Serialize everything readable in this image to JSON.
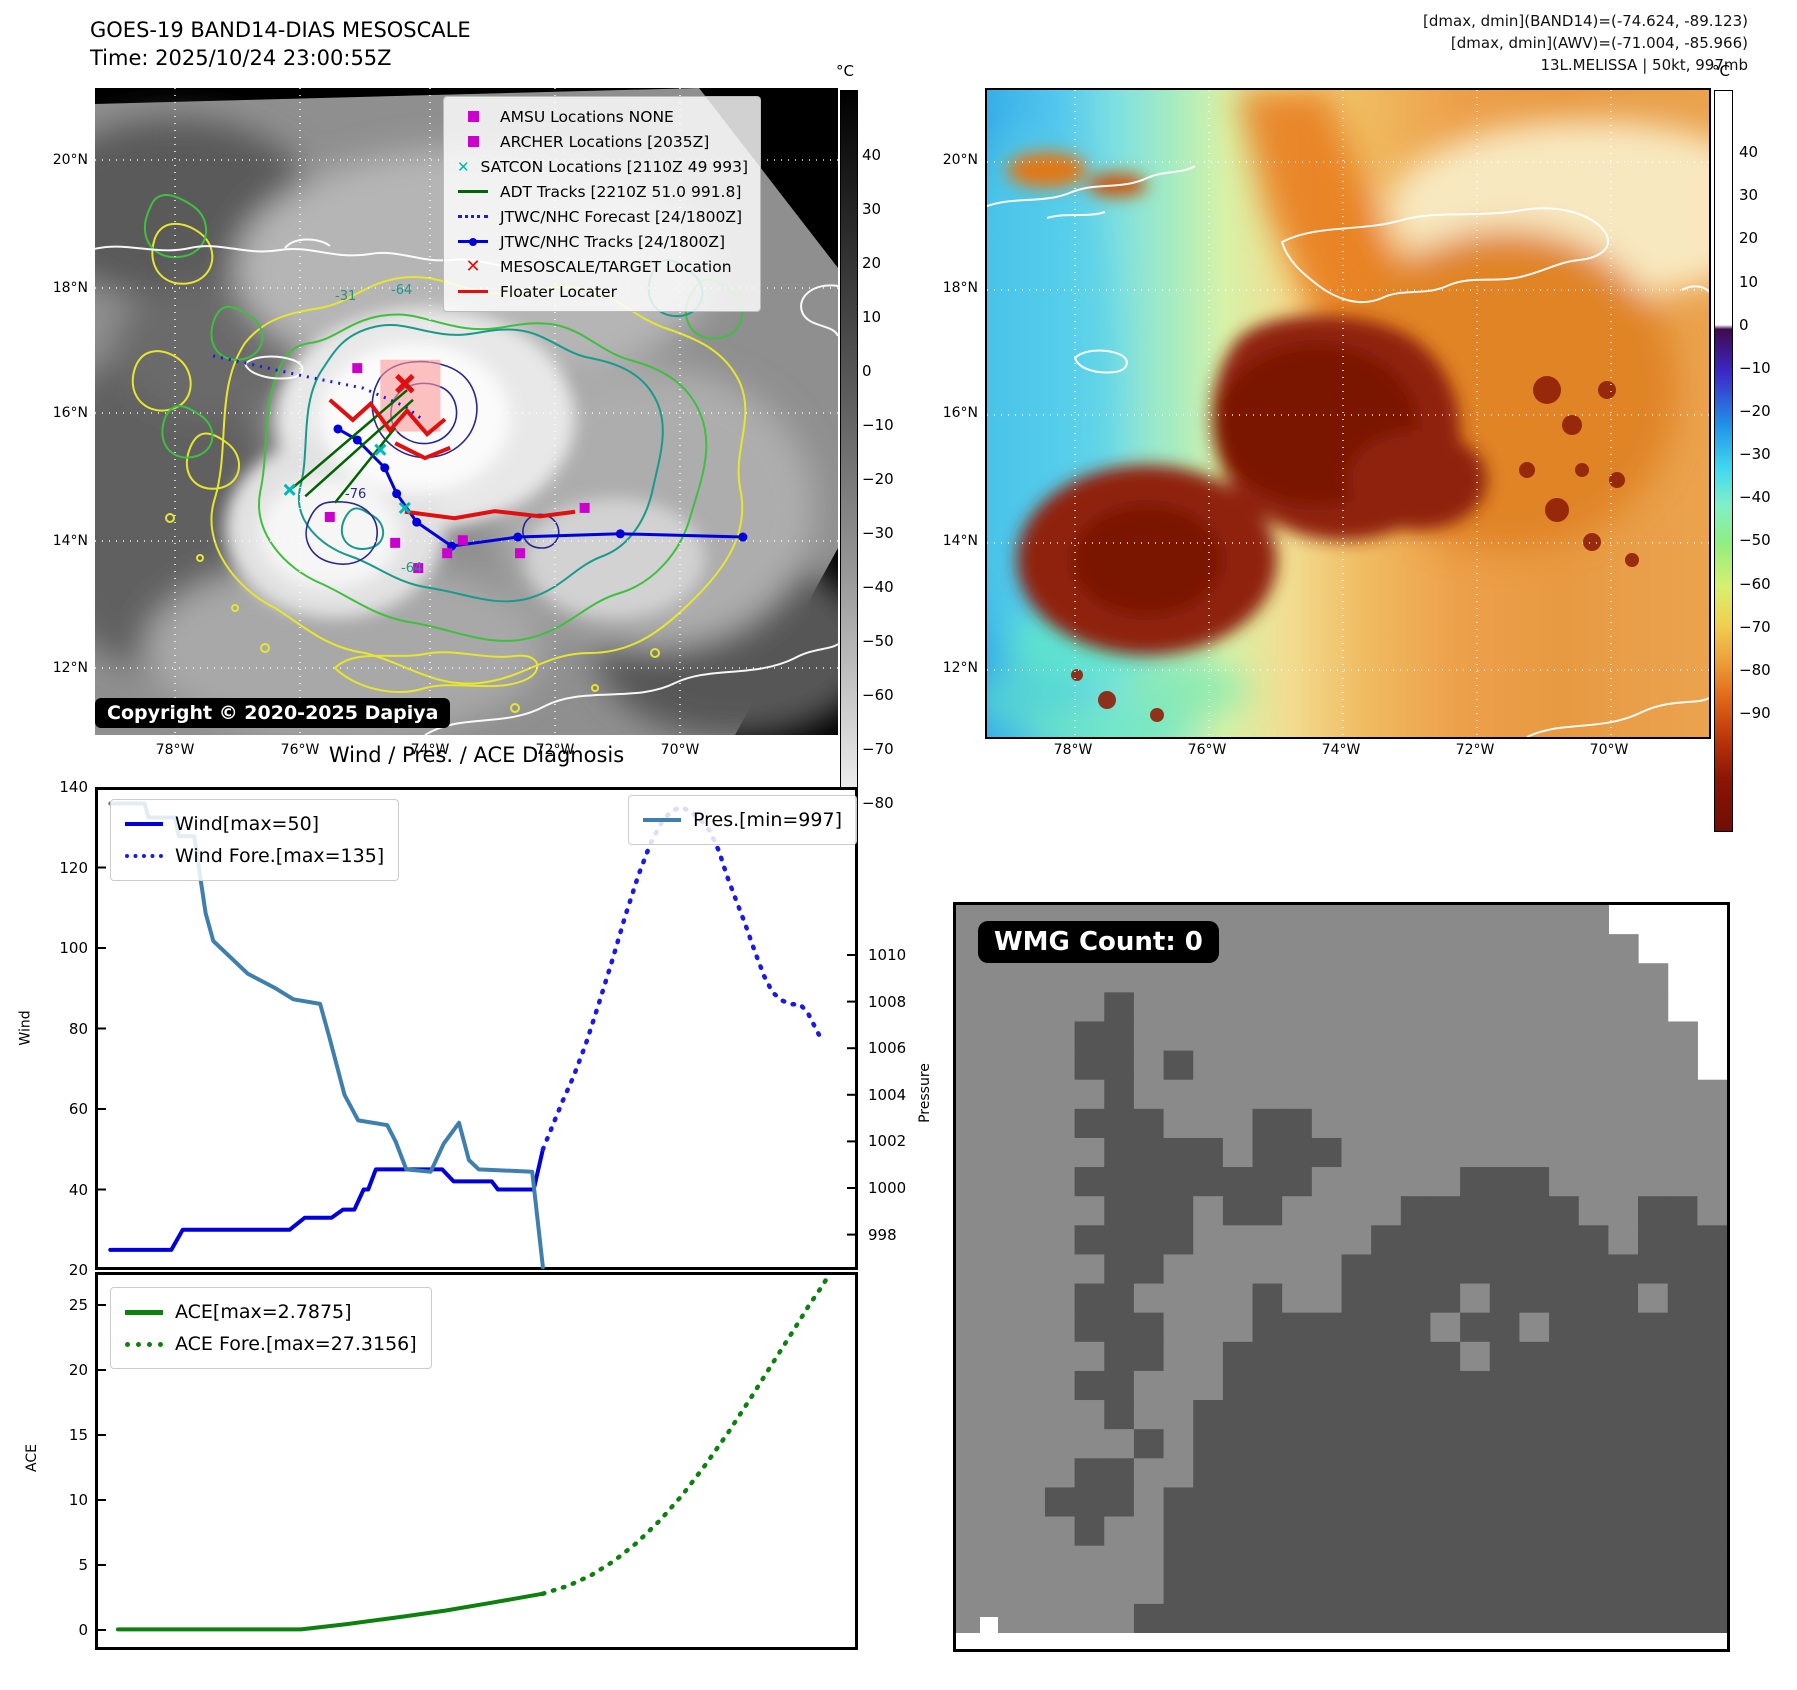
{
  "band14": {
    "title": "GOES-19 BAND14-DIAS MESOSCALE",
    "time_line": "Time: 2025/10/24 23:00:55Z",
    "copyright": "Copyright © 2020-2025 Dapiya",
    "legend": [
      {
        "marker": "square",
        "color": "#cc00cc",
        "label": "AMSU Locations NONE"
      },
      {
        "marker": "square",
        "color": "#cc00cc",
        "label": "ARCHER Locations [2035Z]"
      },
      {
        "marker": "x",
        "color": "#00b8b8",
        "label": "SATCON Locations [2110Z 49 993]"
      },
      {
        "marker": "line",
        "color": "#006400",
        "label": "ADT Tracks [2210Z 51.0 991.8]"
      },
      {
        "marker": "dotted",
        "color": "#1a1ae6",
        "label": "JTWC/NHC Forecast [24/1800Z]"
      },
      {
        "marker": "linedot",
        "color": "#0000dd",
        "label": "JTWC/NHC Tracks [24/1800Z]"
      },
      {
        "marker": "X",
        "color": "#e01010",
        "label": "MESOSCALE/TARGET Location"
      },
      {
        "marker": "line",
        "color": "#e01010",
        "label": "Floater Locater"
      }
    ],
    "lat_labels": [
      "20°N",
      "18°N",
      "16°N",
      "14°N",
      "12°N"
    ],
    "lon_labels": [
      "78°W",
      "76°W",
      "74°W",
      "72°W",
      "70°W"
    ],
    "colorbar": {
      "unit": "°C",
      "ticks": [
        40,
        30,
        20,
        10,
        0,
        -10,
        -20,
        -30,
        -40,
        -50,
        -60,
        -70,
        -80
      ]
    },
    "contour_labels": [
      "-31",
      "-64",
      "-76",
      "-64"
    ],
    "markers": {
      "amsu_archer_squares": [
        [
          0.353,
          0.433
        ],
        [
          0.316,
          0.663
        ],
        [
          0.404,
          0.703
        ],
        [
          0.474,
          0.719
        ],
        [
          0.572,
          0.719
        ],
        [
          0.659,
          0.649
        ],
        [
          0.495,
          0.699
        ],
        [
          0.435,
          0.742
        ]
      ],
      "satcon_crosses": [
        [
          0.262,
          0.621
        ],
        [
          0.384,
          0.559
        ],
        [
          0.417,
          0.649
        ]
      ],
      "target_x": [
        0.417,
        0.457
      ],
      "target_box": [
        0.384,
        0.42,
        0.081,
        0.111
      ],
      "forecast_track": [
        [
          0.159,
          0.414
        ],
        [
          0.276,
          0.444
        ],
        [
          0.361,
          0.464
        ],
        [
          0.417,
          0.492
        ],
        [
          0.444,
          0.515
        ]
      ],
      "jtwc_track": [
        [
          0.872,
          0.694
        ],
        [
          0.707,
          0.689
        ],
        [
          0.569,
          0.694
        ],
        [
          0.48,
          0.708
        ],
        [
          0.433,
          0.671
        ],
        [
          0.406,
          0.627
        ],
        [
          0.39,
          0.587
        ],
        [
          0.353,
          0.544
        ],
        [
          0.327,
          0.527
        ]
      ],
      "adt_tracks": [
        [
          [
            0.266,
            0.618
          ],
          [
            0.42,
            0.467
          ]
        ],
        [
          [
            0.283,
            0.631
          ],
          [
            0.428,
            0.482
          ]
        ],
        [
          [
            0.323,
            0.641
          ],
          [
            0.404,
            0.525
          ]
        ]
      ],
      "floater_tracks": [
        [
          [
            0.316,
            0.482
          ],
          [
            0.347,
            0.513
          ],
          [
            0.371,
            0.488
          ],
          [
            0.397,
            0.529
          ],
          [
            0.42,
            0.499
          ],
          [
            0.447,
            0.535
          ],
          [
            0.471,
            0.512
          ]
        ],
        [
          [
            0.417,
            0.655
          ],
          [
            0.484,
            0.665
          ],
          [
            0.538,
            0.654
          ],
          [
            0.599,
            0.662
          ],
          [
            0.646,
            0.655
          ]
        ],
        [
          [
            0.404,
            0.549
          ],
          [
            0.444,
            0.572
          ],
          [
            0.478,
            0.556
          ]
        ]
      ]
    }
  },
  "awv": {
    "header_lines": [
      "[dmax, dmin](BAND14)=(-74.624, -89.123)",
      "[dmax, dmin](AWV)=(-71.004, -85.966)",
      "13L.MELISSA | 50kt, 997mb"
    ],
    "lat_labels": [
      "20°N",
      "18°N",
      "16°N",
      "14°N",
      "12°N"
    ],
    "lon_labels": [
      "78°W",
      "76°W",
      "74°W",
      "72°W",
      "70°W"
    ],
    "colorbar": {
      "unit": "°C",
      "ticks": [
        40,
        30,
        20,
        10,
        0,
        -10,
        -20,
        -30,
        -40,
        -50,
        -60,
        -70,
        -80,
        -90
      ]
    }
  },
  "charts": {
    "title": "Wind / Pres. / ACE Diagnosis",
    "wind_legend": [
      "Wind[max=50]",
      "Wind Fore.[max=135]"
    ],
    "pres_legend": "Pres.[min=997]",
    "ace_legend": [
      "ACE[max=2.7875]",
      "ACE Fore.[max=27.3156]"
    ]
  },
  "chart_data": [
    {
      "type": "line",
      "subplot": "wind-pressure",
      "title": "Wind / Pres. / ACE Diagnosis",
      "xlabel": "",
      "x_note": "relative time 0-1, no x tick labels shown",
      "ylabel_left": "Wind",
      "ylabel_right": "Pressure",
      "yticks_left": [
        20,
        40,
        60,
        80,
        100,
        120,
        140
      ],
      "yticks_right": [
        998,
        1000,
        1002,
        1004,
        1006,
        1008,
        1010
      ],
      "ylim_left": [
        20,
        140
      ],
      "ylim_right": [
        996.5,
        1017.2
      ],
      "grid": false,
      "series": [
        {
          "name": "Wind[max=50]",
          "axis": "left",
          "style": "solid",
          "color": "#0000dd",
          "points": [
            [
              0.02,
              25
            ],
            [
              0.1,
              25
            ],
            [
              0.115,
              30
            ],
            [
              0.255,
              30
            ],
            [
              0.275,
              33
            ],
            [
              0.31,
              33
            ],
            [
              0.325,
              35
            ],
            [
              0.34,
              35
            ],
            [
              0.352,
              40
            ],
            [
              0.358,
              40
            ],
            [
              0.368,
              45
            ],
            [
              0.455,
              45
            ],
            [
              0.47,
              42
            ],
            [
              0.52,
              42
            ],
            [
              0.528,
              40
            ],
            [
              0.575,
              40
            ],
            [
              0.587,
              50
            ]
          ]
        },
        {
          "name": "Wind Fore.[max=135]",
          "axis": "left",
          "style": "dotted",
          "color": "#1a1ae6",
          "points": [
            [
              0.587,
              50
            ],
            [
              0.6,
              56
            ],
            [
              0.613,
              62
            ],
            [
              0.627,
              68
            ],
            [
              0.643,
              76
            ],
            [
              0.66,
              86
            ],
            [
              0.678,
              97
            ],
            [
              0.695,
              108
            ],
            [
              0.712,
              118
            ],
            [
              0.728,
              126
            ],
            [
              0.742,
              131
            ],
            [
              0.755,
              134
            ],
            [
              0.768,
              135
            ],
            [
              0.78,
              134
            ],
            [
              0.793,
              132
            ],
            [
              0.806,
              129
            ],
            [
              0.818,
              124
            ],
            [
              0.828,
              118
            ],
            [
              0.84,
              112
            ],
            [
              0.852,
              106
            ],
            [
              0.865,
              99
            ],
            [
              0.877,
              93
            ],
            [
              0.888,
              89
            ],
            [
              0.9,
              87
            ],
            [
              0.912,
              86
            ],
            [
              0.924,
              86
            ],
            [
              0.934,
              84
            ],
            [
              0.942,
              81
            ],
            [
              0.95,
              78
            ]
          ]
        },
        {
          "name": "Pres.[min=997]",
          "axis": "right",
          "style": "solid",
          "color": "#3f7fae",
          "points": [
            [
              0.02,
              1016.5
            ],
            [
              0.065,
              1016.5
            ],
            [
              0.07,
              1015.9
            ],
            [
              0.105,
              1015.9
            ],
            [
              0.11,
              1015.1
            ],
            [
              0.13,
              1015.1
            ],
            [
              0.145,
              1011.8
            ],
            [
              0.155,
              1010.6
            ],
            [
              0.2,
              1009.2
            ],
            [
              0.235,
              1008.6
            ],
            [
              0.26,
              1008.1
            ],
            [
              0.295,
              1007.9
            ],
            [
              0.307,
              1006.5
            ],
            [
              0.327,
              1004.0
            ],
            [
              0.345,
              1002.9
            ],
            [
              0.383,
              1002.7
            ],
            [
              0.394,
              1002.0
            ],
            [
              0.408,
              1000.8
            ],
            [
              0.44,
              1000.7
            ],
            [
              0.457,
              1001.9
            ],
            [
              0.477,
              1002.8
            ],
            [
              0.49,
              1001.2
            ],
            [
              0.503,
              1000.8
            ],
            [
              0.573,
              1000.7
            ],
            [
              0.587,
              996.6
            ]
          ]
        }
      ]
    },
    {
      "type": "line",
      "subplot": "ace",
      "xlabel": "",
      "ylabel_left": "ACE",
      "yticks_left": [
        0,
        5,
        10,
        15,
        20,
        25
      ],
      "ylim_left": [
        -1.5,
        27.5
      ],
      "grid": false,
      "series": [
        {
          "name": "ACE[max=2.7875]",
          "axis": "left",
          "style": "solid",
          "color": "#0e8010",
          "points": [
            [
              0.03,
              0.05
            ],
            [
              0.27,
              0.05
            ],
            [
              0.33,
              0.45
            ],
            [
              0.4,
              1.0
            ],
            [
              0.46,
              1.5
            ],
            [
              0.52,
              2.1
            ],
            [
              0.587,
              2.79
            ]
          ]
        },
        {
          "name": "ACE Fore.[max=27.3156]",
          "axis": "left",
          "style": "dotted",
          "color": "#0e8010",
          "points": [
            [
              0.587,
              2.79
            ],
            [
              0.62,
              3.4
            ],
            [
              0.65,
              4.2
            ],
            [
              0.68,
              5.3
            ],
            [
              0.71,
              6.7
            ],
            [
              0.74,
              8.4
            ],
            [
              0.77,
              10.4
            ],
            [
              0.8,
              12.7
            ],
            [
              0.83,
              15.2
            ],
            [
              0.86,
              17.9
            ],
            [
              0.89,
              20.7
            ],
            [
              0.915,
              23.0
            ],
            [
              0.935,
              24.9
            ],
            [
              0.95,
              26.2
            ],
            [
              0.962,
              27.3
            ]
          ]
        }
      ]
    }
  ],
  "wmg": {
    "count_label": "WMG Count: 0",
    "color_light": "#8a8a8a",
    "color_dark": "#555555",
    "rows": [
      "......................WWWW",
      ".......................WWW",
      "........................WW",
      ".....D..................WW",
      "....DD...................W",
      "....DD.D.................W",
      ".....D....................",
      "....DDD...DD..............",
      ".....DDDD.DDD.............",
      "....DDDDDDDD.....DDD......",
      ".....DDD.DD....DDDDDD..DD.",
      "....DDDD......DDDDDDDD.DDD",
      ".....DD......DDDDDDDDDDDDD",
      "....DD....D..DDDD.DDDDD.DD",
      "....DDD...DDDDDD.DD.DDDDDD",
      ".....DD..DDDDDDDD.DDDDDDDD",
      "....DD...DDDDDDDDDDDDDDDDD",
      ".....D..DDDDDDDDDDDDDDDDDD",
      "......D.DDDDDDDDDDDDDDDDDD",
      "....DD..DDDDDDDDDDDDDDDDDD",
      "...DDD.DDDDDDDDDDDDDDDDDDD",
      "....D..DDDDDDDDDDDDDDDDDDD",
      ".......DDDDDDDDDDDDDDDDDDD",
      ".......DDDDDDDDDDDDDDDDDDD",
      "......DDDDDDDDDDDDDDDDDDDD"
    ]
  }
}
